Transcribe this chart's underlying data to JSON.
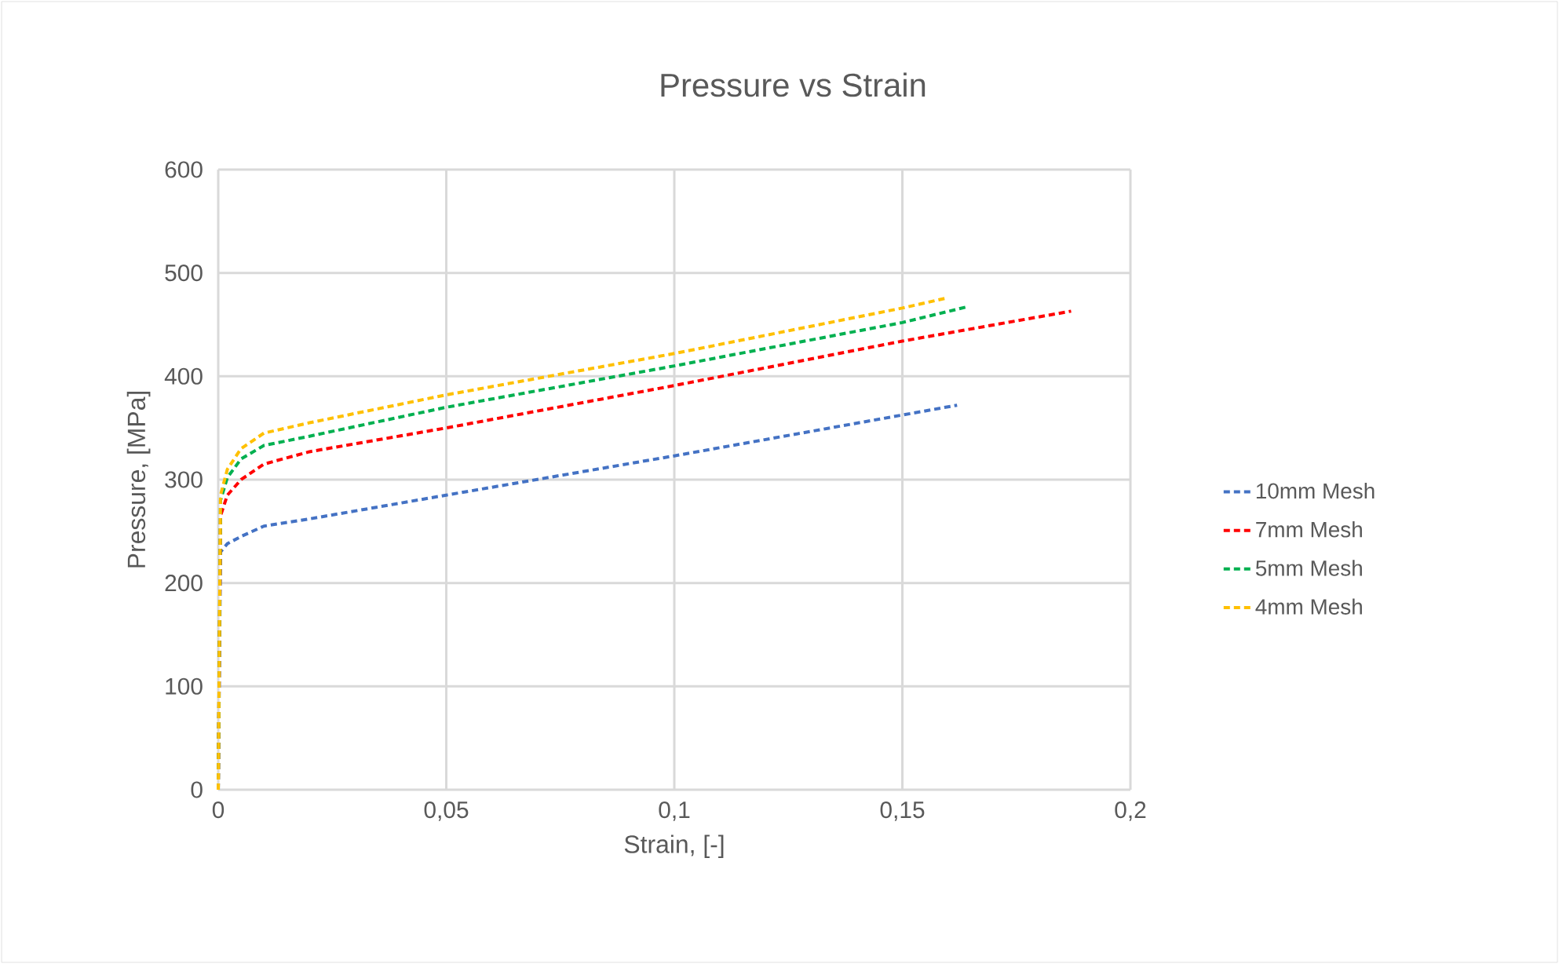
{
  "chart_data": {
    "type": "line",
    "title": "Pressure vs Strain",
    "xlabel": "Strain, [-]",
    "ylabel": "Pressure, [MPa]",
    "xlim": [
      0,
      0.2
    ],
    "ylim": [
      0,
      600
    ],
    "xticks": [
      0,
      {
        "value": 0.05,
        "label": "0,05"
      },
      {
        "value": 0.1,
        "label": "0,1"
      },
      {
        "value": 0.15,
        "label": "0,15"
      },
      {
        "value": 0.2,
        "label": "0,2"
      }
    ],
    "yticks": [
      0,
      100,
      200,
      300,
      400,
      500,
      600
    ],
    "grid": true,
    "legend": "right",
    "line_style": "dashed",
    "marker": "none",
    "series": [
      {
        "name": "10mm Mesh",
        "color": "#4472c4",
        "x": [
          0,
          0.0005,
          0.002,
          0.005,
          0.01,
          0.02,
          0.05,
          0.1,
          0.162
        ],
        "values": [
          0,
          230,
          238,
          245,
          255,
          262,
          285,
          323,
          372
        ]
      },
      {
        "name": "7mm Mesh",
        "color": "#ff0000",
        "x": [
          0,
          0.0005,
          0.002,
          0.005,
          0.01,
          0.02,
          0.05,
          0.1,
          0.15,
          0.187
        ],
        "values": [
          0,
          265,
          285,
          300,
          315,
          327,
          350,
          391,
          434,
          463
        ]
      },
      {
        "name": "5mm Mesh",
        "color": "#00b050",
        "x": [
          0,
          0.0005,
          0.002,
          0.005,
          0.01,
          0.02,
          0.05,
          0.1,
          0.15,
          0.164
        ],
        "values": [
          0,
          280,
          302,
          320,
          333,
          342,
          370,
          410,
          452,
          467
        ]
      },
      {
        "name": "4mm Mesh",
        "color": "#ffc000",
        "x": [
          0,
          0.0005,
          0.002,
          0.005,
          0.01,
          0.02,
          0.05,
          0.1,
          0.15,
          0.16
        ],
        "values": [
          0,
          285,
          310,
          330,
          345,
          355,
          382,
          422,
          466,
          476
        ]
      }
    ]
  }
}
